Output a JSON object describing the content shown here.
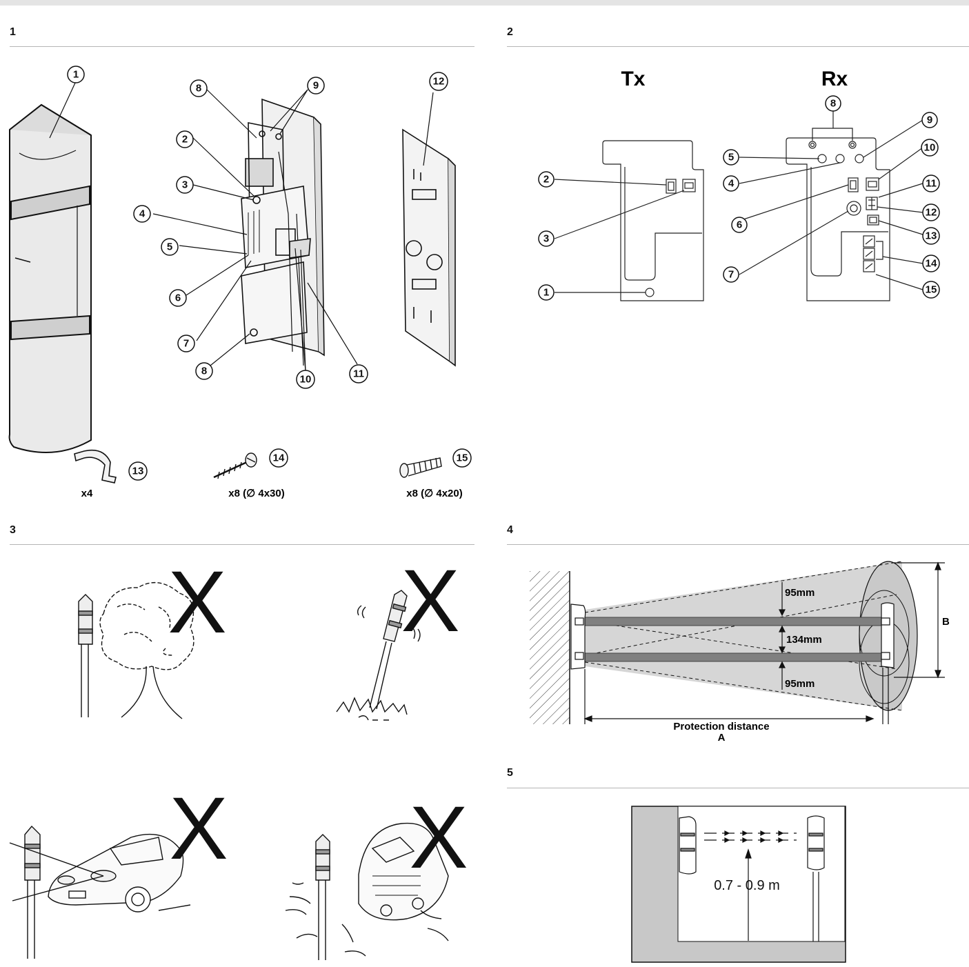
{
  "sections": {
    "s1": "1",
    "s2": "2",
    "s3": "3",
    "s4": "4",
    "s5": "5"
  },
  "fig1": {
    "callouts": [
      "1",
      "2",
      "3",
      "4",
      "5",
      "6",
      "7",
      "8",
      "9",
      "10",
      "11",
      "12",
      "13",
      "14",
      "15"
    ],
    "qty_clamp": "x4",
    "qty_screw_wood": "x8 (∅ 4x30)",
    "qty_screw_machine": "x8 (∅ 4x20)"
  },
  "fig2": {
    "tx_title": "Tx",
    "rx_title": "Rx",
    "tx_callouts": [
      "1",
      "2",
      "3"
    ],
    "rx_callouts": [
      "4",
      "5",
      "6",
      "7",
      "8",
      "9",
      "10",
      "11",
      "12",
      "13",
      "14",
      "15"
    ]
  },
  "fig3": {
    "mark": "X"
  },
  "fig4": {
    "top_gap": "95mm",
    "beam_gap": "134mm",
    "bottom_gap": "95mm",
    "dim_b": "B",
    "distance_label": "Protection distance",
    "distance_letter": "A"
  },
  "fig5": {
    "height_range": "0.7 - 0.9 m"
  },
  "colors": {
    "rule": "#b5b5b5",
    "beam_gray": "#808080",
    "cone_gray": "#d6d6d6",
    "ground_gray": "#c8c8c8",
    "topbar": "#e4e4e4"
  }
}
